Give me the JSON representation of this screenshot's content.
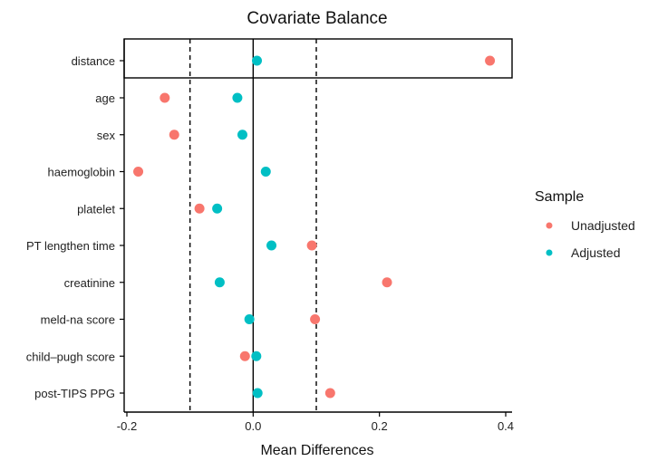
{
  "chart_data": {
    "type": "scatter",
    "title": "Covariate Balance",
    "xlabel": "Mean Differences",
    "ylabel": "",
    "xlim": [
      -0.2,
      0.4
    ],
    "xticks": [
      -0.2,
      0,
      0.2,
      0.4
    ],
    "xtick_labels": [
      "-0.2",
      "0.0",
      "0.2",
      "0.4"
    ],
    "threshold_lines": [
      -0.1,
      0.1
    ],
    "zero_line": 0,
    "categories": [
      "distance",
      "age",
      "sex",
      "haemoglobin",
      "platelet",
      "PT lengthen time",
      "creatinine",
      "meld-na score",
      "child–pugh score",
      "post-TIPS PPG"
    ],
    "separated_category": "distance",
    "series": [
      {
        "name": "Unadjusted",
        "color": "#F8766D",
        "values": [
          0.375,
          -0.14,
          -0.125,
          -0.182,
          -0.085,
          0.093,
          0.212,
          0.098,
          -0.013,
          0.122
        ]
      },
      {
        "name": "Adjusted",
        "color": "#00BFC4",
        "values": [
          0.006,
          -0.025,
          -0.017,
          0.02,
          -0.057,
          0.029,
          -0.053,
          -0.006,
          0.005,
          0.007
        ]
      }
    ],
    "legend": {
      "title": "Sample",
      "position": "right"
    },
    "grid": false
  }
}
